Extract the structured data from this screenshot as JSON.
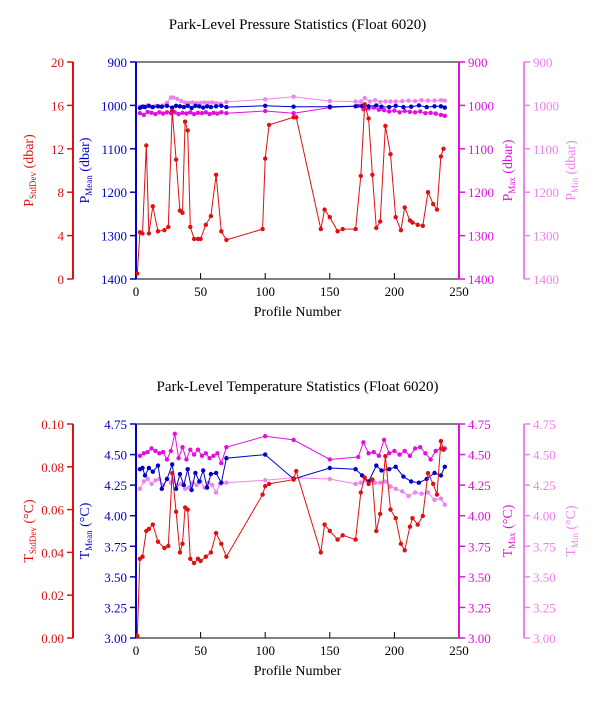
{
  "colors": {
    "stddev": "#e01010",
    "mean": "#0000c8",
    "max": "#e010e0",
    "min": "#ee82ee",
    "frame": "#000000"
  },
  "chart_data": [
    {
      "type": "line",
      "title": "Park-Level Pressure Statistics (Float 6020)",
      "xlabel": "Profile Number",
      "xlim": [
        0,
        250
      ],
      "xticks": [
        0,
        50,
        100,
        150,
        200,
        250
      ],
      "axes": {
        "stddev": {
          "label_main": "P",
          "label_sub": "StdDev",
          "label_unit": " (dbar)",
          "ylim": [
            0,
            20
          ],
          "ticks": [
            0,
            4,
            8,
            12,
            16,
            20
          ],
          "inverted": false
        },
        "mean": {
          "label_main": "P",
          "label_sub": "Mean",
          "label_unit": " (dbar)",
          "ylim": [
            900,
            1400
          ],
          "ticks": [
            900,
            1000,
            1100,
            1200,
            1300,
            1400
          ],
          "inverted": true
        },
        "max": {
          "label_main": "P",
          "label_sub": "Max",
          "label_unit": " (dbar)",
          "ylim": [
            900,
            1400
          ],
          "ticks": [
            900,
            1000,
            1100,
            1200,
            1300,
            1400
          ],
          "inverted": true
        },
        "min": {
          "label_main": "P",
          "label_sub": "Min",
          "label_unit": " (dbar)",
          "ylim": [
            900,
            1400
          ],
          "ticks": [
            900,
            1000,
            1100,
            1200,
            1300,
            1400
          ],
          "inverted": true
        }
      },
      "series": [
        {
          "key": "stddev",
          "x": [
            1,
            3,
            5,
            8,
            10,
            13,
            17,
            22,
            25,
            28,
            31,
            34,
            36,
            38,
            40,
            42,
            45,
            48,
            50,
            54,
            58,
            62,
            66,
            70,
            98,
            100,
            103,
            122,
            124,
            143,
            146,
            150,
            156,
            160,
            170,
            174,
            177,
            180,
            183,
            186,
            189,
            193,
            197,
            201,
            205,
            208,
            212,
            214,
            218,
            222,
            226,
            230,
            233,
            236,
            238
          ],
          "y": [
            0.5,
            4.3,
            4.2,
            12.3,
            4.2,
            6.7,
            4.4,
            4.5,
            4.8,
            15.5,
            11,
            6.3,
            6.1,
            14.5,
            13.7,
            4.8,
            3.7,
            3.7,
            3.7,
            5,
            5.8,
            9.6,
            4.4,
            3.6,
            4.6,
            11.1,
            14.2,
            14.9,
            14.9,
            4.6,
            6.4,
            5.7,
            4.4,
            4.6,
            4.6,
            9.5,
            16.1,
            14.8,
            9.6,
            4.7,
            5.3,
            14.1,
            11.5,
            5.7,
            4.5,
            6.6,
            5.4,
            5.2,
            5.0,
            4.9,
            8,
            6.9,
            6.4,
            11.3,
            12
          ]
        },
        {
          "key": "mean",
          "x": [
            3,
            5,
            7,
            10,
            13,
            17,
            20,
            24,
            28,
            31,
            34,
            37,
            40,
            43,
            46,
            49,
            52,
            55,
            58,
            62,
            66,
            70,
            100,
            122,
            150,
            170,
            175,
            180,
            186,
            190,
            196,
            201,
            207,
            213,
            219,
            225,
            231,
            236,
            239
          ],
          "y": [
            1006,
            1003,
            1004,
            1001,
            1004,
            1002,
            1003,
            1001,
            1005,
            1001,
            1002,
            1004,
            1001,
            1006,
            1001,
            1002,
            1005,
            1002,
            1004,
            1002,
            1001,
            1004,
            1001,
            1003,
            1003,
            1002,
            1001,
            1002,
            1000,
            1003,
            1004,
            1001,
            1004,
            1003,
            1000,
            1004,
            1002,
            1002,
            1005
          ]
        },
        {
          "key": "max",
          "x": [
            3,
            6,
            9,
            12,
            15,
            18,
            21,
            24,
            27,
            30,
            33,
            36,
            39,
            42,
            45,
            48,
            51,
            54,
            57,
            60,
            63,
            66,
            70,
            100,
            122,
            150,
            172,
            176,
            180,
            184,
            188,
            192,
            196,
            200,
            204,
            208,
            212,
            216,
            220,
            224,
            228,
            232,
            236,
            239
          ],
          "y": [
            1018,
            1022,
            1015,
            1017,
            1020,
            1016,
            1019,
            1016,
            1018,
            1016,
            1020,
            1017,
            1019,
            1016,
            1020,
            1017,
            1018,
            1016,
            1020,
            1017,
            1019,
            1016,
            1018,
            1013,
            1018,
            1005,
            1001,
            1009,
            1007,
            1005,
            1010,
            1011,
            1014,
            1012,
            1016,
            1013,
            1015,
            1016,
            1014,
            1018,
            1017,
            1019,
            1022,
            1024
          ]
        },
        {
          "key": "min",
          "x": [
            3,
            6,
            9,
            12,
            15,
            18,
            21,
            24,
            27,
            29,
            32,
            35,
            38,
            41,
            44,
            47,
            50,
            53,
            56,
            59,
            62,
            65,
            70,
            100,
            122,
            150,
            170,
            174,
            177,
            181,
            185,
            189,
            193,
            197,
            201,
            206,
            211,
            216,
            221,
            226,
            231,
            236,
            239
          ],
          "y": [
            1003,
            1002,
            1000,
            1004,
            1001,
            1003,
            1000,
            994,
            982,
            982,
            985,
            990,
            993,
            994,
            993,
            995,
            994,
            993,
            994,
            993,
            995,
            996,
            992,
            986,
            980,
            990,
            991,
            991,
            983,
            991,
            988,
            992,
            991,
            991,
            991,
            990,
            989,
            990,
            988,
            989,
            989,
            988,
            989
          ]
        }
      ]
    },
    {
      "type": "line",
      "title": "Park-Level Temperature Statistics (Float 6020)",
      "xlabel": "Profile Number",
      "xlim": [
        0,
        250
      ],
      "xticks": [
        0,
        50,
        100,
        150,
        200,
        250
      ],
      "axes": {
        "stddev": {
          "label_main": "T",
          "label_sub": "StdDev",
          "label_unit": " (°C)",
          "ylim": [
            0,
            0.1
          ],
          "ticks": [
            "0.00",
            "0.02",
            "0.04",
            "0.06",
            "0.08",
            "0.10"
          ],
          "inverted": false
        },
        "mean": {
          "label_main": "T",
          "label_sub": "Mean",
          "label_unit": " (°C)",
          "ylim": [
            3,
            4.75
          ],
          "ticks": [
            "3.00",
            "3.25",
            "3.50",
            "3.75",
            "4.00",
            "4.25",
            "4.50",
            "4.75"
          ],
          "inverted": false
        },
        "max": {
          "label_main": "T",
          "label_sub": "Max",
          "label_unit": " (°C)",
          "ylim": [
            3,
            4.75
          ],
          "ticks": [
            "3.00",
            "3.25",
            "3.50",
            "3.75",
            "4.00",
            "4.25",
            "4.50",
            "4.75"
          ],
          "inverted": false
        },
        "min": {
          "label_main": "T",
          "label_sub": "Min",
          "label_unit": " (°C)",
          "ylim": [
            3,
            4.75
          ],
          "ticks": [
            "3.00",
            "3.25",
            "3.50",
            "3.75",
            "4.00",
            "4.25",
            "4.50",
            "4.75"
          ],
          "inverted": false
        }
      },
      "series": [
        {
          "key": "stddev",
          "x": [
            1,
            3,
            5,
            8,
            10,
            13,
            17,
            22,
            25,
            28,
            31,
            34,
            36,
            38,
            40,
            42,
            45,
            48,
            50,
            54,
            58,
            62,
            66,
            70,
            98,
            100,
            103,
            122,
            124,
            143,
            146,
            150,
            156,
            160,
            170,
            174,
            177,
            180,
            183,
            186,
            189,
            193,
            197,
            201,
            205,
            208,
            212,
            214,
            218,
            222,
            226,
            230,
            233,
            236,
            238
          ],
          "y": [
            0.001,
            0.037,
            0.038,
            0.05,
            0.051,
            0.053,
            0.045,
            0.042,
            0.043,
            0.077,
            0.059,
            0.04,
            0.044,
            0.061,
            0.06,
            0.037,
            0.035,
            0.037,
            0.036,
            0.038,
            0.04,
            0.049,
            0.044,
            0.038,
            0.067,
            0.071,
            0.072,
            0.074,
            0.078,
            0.04,
            0.053,
            0.05,
            0.046,
            0.048,
            0.046,
            0.068,
            0.075,
            0.072,
            0.074,
            0.05,
            0.058,
            0.085,
            0.06,
            0.056,
            0.044,
            0.041,
            0.052,
            0.056,
            0.053,
            0.057,
            0.077,
            0.072,
            0.067,
            0.092,
            0.088
          ]
        },
        {
          "key": "mean",
          "x": [
            3,
            5,
            7,
            10,
            13,
            17,
            20,
            24,
            28,
            31,
            34,
            37,
            40,
            43,
            46,
            49,
            52,
            55,
            58,
            62,
            66,
            70,
            100,
            122,
            150,
            170,
            175,
            180,
            186,
            190,
            196,
            201,
            207,
            213,
            219,
            225,
            231,
            236,
            239
          ],
          "y": [
            4.38,
            4.39,
            4.33,
            4.39,
            4.36,
            4.41,
            4.22,
            4.3,
            4.42,
            4.22,
            4.34,
            4.25,
            4.38,
            4.21,
            4.35,
            4.28,
            4.37,
            4.23,
            4.34,
            4.35,
            4.27,
            4.47,
            4.5,
            4.3,
            4.39,
            4.38,
            4.33,
            4.28,
            4.41,
            4.37,
            4.38,
            4.4,
            4.32,
            4.28,
            4.27,
            4.3,
            4.35,
            4.33,
            4.4
          ]
        },
        {
          "key": "max",
          "x": [
            3,
            6,
            9,
            12,
            15,
            18,
            21,
            24,
            27,
            30,
            33,
            36,
            39,
            42,
            45,
            48,
            51,
            54,
            57,
            60,
            63,
            66,
            70,
            100,
            122,
            150,
            172,
            176,
            180,
            184,
            188,
            192,
            196,
            200,
            204,
            208,
            212,
            216,
            220,
            224,
            228,
            232,
            236,
            239
          ],
          "y": [
            4.49,
            4.51,
            4.52,
            4.55,
            4.53,
            4.51,
            4.52,
            4.46,
            4.53,
            4.67,
            4.47,
            4.56,
            4.46,
            4.54,
            4.5,
            4.54,
            4.49,
            4.51,
            4.47,
            4.49,
            4.51,
            4.43,
            4.56,
            4.65,
            4.62,
            4.46,
            4.48,
            4.6,
            4.51,
            4.52,
            4.49,
            4.62,
            4.51,
            4.53,
            4.5,
            4.53,
            4.49,
            4.55,
            4.56,
            4.51,
            4.46,
            4.53,
            4.55,
            4.55
          ]
        },
        {
          "key": "min",
          "x": [
            3,
            6,
            9,
            12,
            15,
            18,
            21,
            24,
            27,
            29,
            32,
            35,
            38,
            41,
            44,
            47,
            50,
            53,
            56,
            59,
            62,
            65,
            70,
            100,
            122,
            150,
            170,
            174,
            177,
            181,
            185,
            189,
            193,
            197,
            201,
            206,
            211,
            216,
            221,
            226,
            231,
            236,
            239
          ],
          "y": [
            4.22,
            4.28,
            4.3,
            4.26,
            4.29,
            4.3,
            4.25,
            4.3,
            4.27,
            4.28,
            4.25,
            4.26,
            4.22,
            4.23,
            4.27,
            4.25,
            4.28,
            4.23,
            4.27,
            4.25,
            4.19,
            4.26,
            4.27,
            4.29,
            4.31,
            4.3,
            4.26,
            4.27,
            4.29,
            4.28,
            4.27,
            4.27,
            4.28,
            4.24,
            4.22,
            4.2,
            4.16,
            4.19,
            4.18,
            4.19,
            4.13,
            4.14,
            4.09
          ]
        }
      ]
    }
  ]
}
